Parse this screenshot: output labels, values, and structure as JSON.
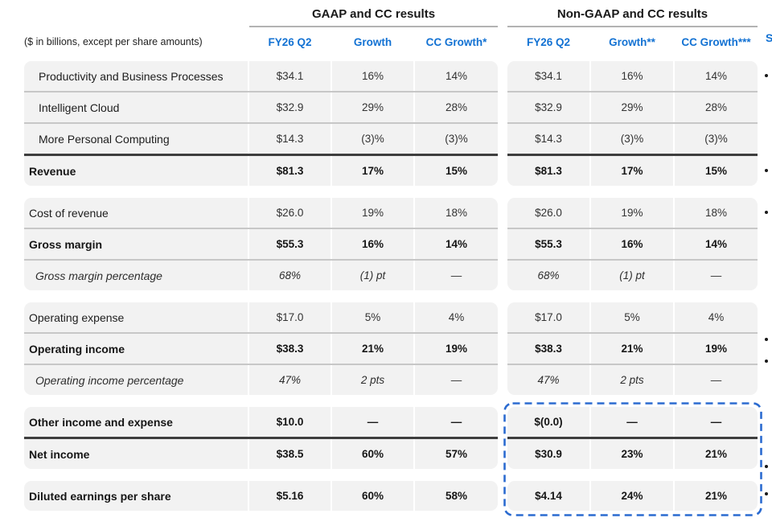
{
  "chart_data": {
    "type": "table",
    "note": "($ in billions, except per share amounts)",
    "column_groups": {
      "gaap": {
        "title": "GAAP and CC results",
        "columns": [
          "FY26 Q2",
          "Growth",
          "CC Growth*"
        ]
      },
      "non_gaap": {
        "title": "Non-GAAP and CC results",
        "columns": [
          "FY26 Q2",
          "Growth**",
          "CC Growth***"
        ]
      }
    },
    "blocks": [
      {
        "name": "revenue-segments",
        "rows": [
          {
            "label": "Productivity and Business Processes",
            "style": "segment",
            "gaap": [
              "$34.1",
              "16%",
              "14%"
            ],
            "non_gaap": [
              "$34.1",
              "16%",
              "14%"
            ],
            "divider_after": "normal"
          },
          {
            "label": "Intelligent Cloud",
            "style": "segment",
            "gaap": [
              "$32.9",
              "29%",
              "28%"
            ],
            "non_gaap": [
              "$32.9",
              "29%",
              "28%"
            ],
            "divider_after": "normal"
          },
          {
            "label": "More Personal Computing",
            "style": "segment",
            "gaap": [
              "$14.3",
              "(3)%",
              "(3)%"
            ],
            "non_gaap": [
              "$14.3",
              "(3)%",
              "(3)%"
            ],
            "divider_after": "heavy"
          },
          {
            "label": "Revenue",
            "style": "bold",
            "gaap": [
              "$81.3",
              "17%",
              "15%"
            ],
            "non_gaap": [
              "$81.3",
              "17%",
              "15%"
            ],
            "divider_after": "none"
          }
        ]
      },
      {
        "name": "gross-margin",
        "rows": [
          {
            "label": "Cost of revenue",
            "style": "normal",
            "gaap": [
              "$26.0",
              "19%",
              "18%"
            ],
            "non_gaap": [
              "$26.0",
              "19%",
              "18%"
            ],
            "divider_after": "normal"
          },
          {
            "label": "Gross margin",
            "style": "bold",
            "gaap": [
              "$55.3",
              "16%",
              "14%"
            ],
            "non_gaap": [
              "$55.3",
              "16%",
              "14%"
            ],
            "divider_after": "normal"
          },
          {
            "label": "Gross margin percentage",
            "style": "italic",
            "gaap": [
              "68%",
              "(1) pt",
              "—"
            ],
            "non_gaap": [
              "68%",
              "(1) pt",
              "—"
            ],
            "divider_after": "none"
          }
        ]
      },
      {
        "name": "operating",
        "rows": [
          {
            "label": "Operating expense",
            "style": "normal",
            "gaap": [
              "$17.0",
              "5%",
              "4%"
            ],
            "non_gaap": [
              "$17.0",
              "5%",
              "4%"
            ],
            "divider_after": "normal"
          },
          {
            "label": "Operating income",
            "style": "bold",
            "gaap": [
              "$38.3",
              "21%",
              "19%"
            ],
            "non_gaap": [
              "$38.3",
              "21%",
              "19%"
            ],
            "divider_after": "normal"
          },
          {
            "label": "Operating income percentage",
            "style": "italic",
            "gaap": [
              "47%",
              "2 pts",
              "—"
            ],
            "non_gaap": [
              "47%",
              "2 pts",
              "—"
            ],
            "divider_after": "none"
          }
        ]
      },
      {
        "name": "net-income",
        "rows": [
          {
            "label": "Other income and expense",
            "style": "bold",
            "gaap": [
              "$10.0",
              "—",
              "—"
            ],
            "non_gaap": [
              "$(0.0)",
              "—",
              "—"
            ],
            "divider_after": "heavy"
          },
          {
            "label": "Net income",
            "style": "bold",
            "gaap": [
              "$38.5",
              "60%",
              "57%"
            ],
            "non_gaap": [
              "$30.9",
              "23%",
              "21%"
            ],
            "divider_after": "none"
          }
        ]
      },
      {
        "name": "eps",
        "rows": [
          {
            "label": "Diluted earnings per share",
            "style": "bold",
            "gaap": [
              "$5.16",
              "60%",
              "58%"
            ],
            "non_gaap": [
              "$4.14",
              "24%",
              "21%"
            ],
            "divider_after": "none"
          }
        ]
      }
    ]
  },
  "highlight": {
    "description": "dashed box around Non-GAAP other income / net income / diluted EPS rows",
    "color": "#2b6bd0"
  },
  "right_edge": {
    "clipped_heading": "S",
    "bullet_glyph": "•",
    "bullets_y": [
      92,
      210,
      262,
      420,
      447,
      578,
      612
    ]
  },
  "colors": {
    "header_blue": "#1372d3",
    "row_background": "#f2f2f2",
    "divider": "#c7c7c7",
    "heavy_divider": "#3e3e3e",
    "title_underline": "#b3b3b3",
    "highlight_dash": "#2b6bd0"
  }
}
